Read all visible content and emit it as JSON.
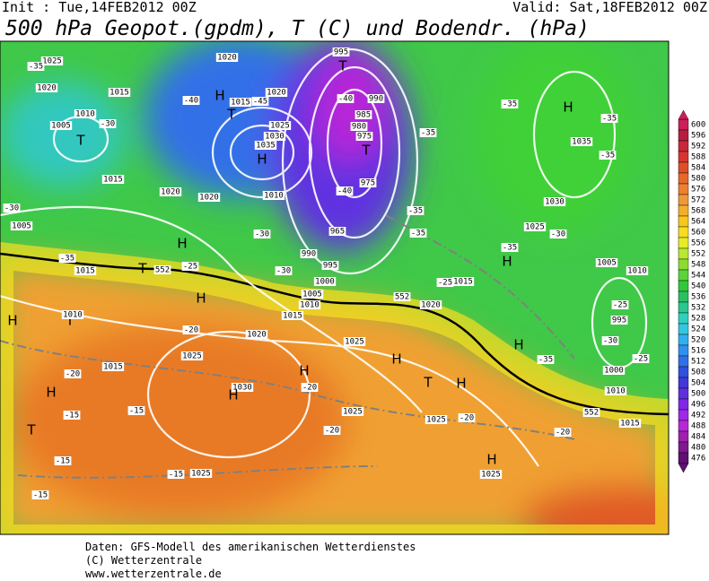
{
  "header": {
    "init": "Init : Tue,14FEB2012 00Z",
    "valid": "Valid: Sat,18FEB2012 00Z",
    "title": "500 hPa Geopot.(gpdm), T (C) und Bodendr. (hPa)"
  },
  "colorbar": {
    "levels": [
      600,
      596,
      592,
      588,
      584,
      580,
      576,
      572,
      568,
      564,
      560,
      556,
      552,
      548,
      544,
      540,
      536,
      532,
      528,
      524,
      520,
      516,
      512,
      508,
      504,
      500,
      496,
      492,
      488,
      484,
      480,
      476
    ],
    "colors": [
      "#cc1f5a",
      "#b81e3c",
      "#c8283a",
      "#d8342e",
      "#e04e28",
      "#e8682a",
      "#ee8030",
      "#f09838",
      "#f4ae2c",
      "#f8c818",
      "#f8dc20",
      "#e8ec28",
      "#b8e830",
      "#8cdc30",
      "#5ad438",
      "#30c83c",
      "#28c060",
      "#28c890",
      "#30d0c0",
      "#30c8e0",
      "#30b0f0",
      "#3090f0",
      "#3070e8",
      "#3050e0",
      "#4038d8",
      "#6030e0",
      "#8028e8",
      "#a028e8",
      "#b828d8",
      "#a020b0",
      "#801890",
      "#601070"
    ]
  },
  "map": {
    "labels": [
      "1025",
      "1020",
      "1015",
      "1010",
      "1005",
      "T",
      "-30",
      "-35",
      "-40",
      "H",
      "T",
      "1015",
      "-45",
      "1020",
      "1025",
      "1030",
      "1035",
      "H",
      "1020",
      "995",
      "T",
      "990",
      "985",
      "980",
      "975",
      "T",
      "975",
      "-40",
      "-40",
      "965",
      "990",
      "995",
      "1000",
      "1005",
      "1010",
      "1015",
      "-30",
      "-30",
      "1010",
      "1020",
      "1020",
      "1015",
      "-30",
      "1005",
      "H",
      "-35",
      "1015",
      "T",
      "552",
      "-25",
      "H",
      "H",
      "T",
      "1010",
      "1015",
      "-20",
      "H",
      "-15",
      "T",
      "-15",
      "-15",
      "1025",
      "-20",
      "1020",
      "1030",
      "H",
      "-15",
      "-15",
      "1025",
      "H",
      "-20",
      "1025",
      "H",
      "-20",
      "1025",
      "T",
      "H",
      "1025",
      "-20",
      "H",
      "1025",
      "-20",
      "1020",
      "1015",
      "-25",
      "552",
      "H",
      "-35",
      "-35",
      "-35",
      "-35",
      "-35",
      "1025",
      "1030",
      "-30",
      "1035",
      "H",
      "-35",
      "-35",
      "1005",
      "1010",
      "-25",
      "995",
      "-30",
      "H",
      "-35",
      "1000",
      "1010",
      "-25",
      "552",
      "1015"
    ]
  },
  "footer": {
    "lines": [
      "Daten: GFS-Modell des amerikanischen Wetterdienstes",
      "(C) Wetterzentrale",
      "www.wetterzentrale.de"
    ]
  }
}
